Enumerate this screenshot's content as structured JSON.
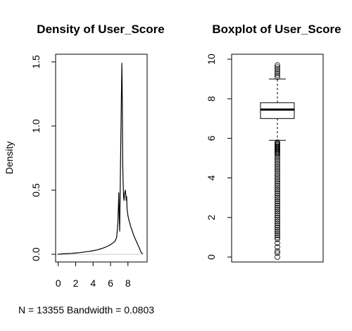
{
  "chart_data": [
    {
      "type": "line",
      "title": "Density of User_Score",
      "ylabel": "Density",
      "xlabel": "N = 13355   Bandwidth = 0.0803",
      "xlim": [
        -0.3,
        10.2
      ],
      "ylim": [
        -0.06,
        1.56
      ],
      "x_ticks": [
        0,
        2,
        4,
        6,
        8
      ],
      "y_ticks": [
        0.0,
        0.5,
        1.0,
        1.5
      ],
      "x_tick_labels": [
        "0",
        "2",
        "4",
        "6",
        "8"
      ],
      "y_tick_labels": [
        "0.0",
        "0.5",
        "1.0",
        "1.5"
      ],
      "zero_line": true,
      "series": [
        {
          "x": [
            -0.1,
            0.5,
            1.0,
            1.5,
            2.0,
            2.5,
            3.0,
            3.5,
            4.0,
            4.5,
            5.0,
            5.5,
            6.0,
            6.3,
            6.5,
            6.7,
            6.85,
            6.95,
            7.0,
            7.05,
            7.1,
            7.2,
            7.3,
            7.35,
            7.4,
            7.45,
            7.5,
            7.55,
            7.6,
            7.7,
            7.8,
            7.85,
            7.9,
            8.0,
            8.1,
            8.3,
            8.5,
            8.7,
            8.9,
            9.1,
            9.3,
            9.5,
            9.7
          ],
          "y": [
            0.0,
            0.003,
            0.005,
            0.007,
            0.01,
            0.013,
            0.018,
            0.022,
            0.028,
            0.035,
            0.045,
            0.058,
            0.075,
            0.09,
            0.1,
            0.13,
            0.25,
            0.48,
            0.3,
            0.18,
            0.45,
            1.0,
            1.49,
            1.2,
            0.7,
            0.55,
            0.45,
            0.42,
            0.47,
            0.5,
            0.42,
            0.45,
            0.35,
            0.3,
            0.27,
            0.22,
            0.18,
            0.14,
            0.11,
            0.08,
            0.05,
            0.015,
            0.002
          ]
        }
      ]
    },
    {
      "type": "boxplot",
      "title": "Boxplot of User_Score",
      "ylim": [
        -0.25,
        10.25
      ],
      "y_ticks": [
        0,
        2,
        4,
        6,
        8,
        10
      ],
      "y_tick_labels": [
        "0",
        "2",
        "4",
        "6",
        "8",
        "10"
      ],
      "box": {
        "min": 5.9,
        "q1": 7.0,
        "median": 7.45,
        "q3": 7.8,
        "max": 9.0
      },
      "outliers_high": [
        9.1,
        9.2,
        9.3,
        9.4,
        9.5,
        9.6,
        9.7
      ],
      "outliers_low": [
        5.8,
        5.75,
        5.7,
        5.65,
        5.6,
        5.55,
        5.5,
        5.45,
        5.4,
        5.35,
        5.3,
        5.25,
        5.2,
        5.1,
        5.0,
        4.9,
        4.8,
        4.7,
        4.6,
        4.5,
        4.4,
        4.3,
        4.2,
        4.1,
        4.0,
        3.9,
        3.8,
        3.7,
        3.6,
        3.5,
        3.4,
        3.3,
        3.2,
        3.1,
        3.0,
        2.9,
        2.8,
        2.7,
        2.6,
        2.5,
        2.4,
        2.3,
        2.2,
        2.1,
        2.0,
        1.9,
        1.8,
        1.7,
        1.6,
        1.5,
        1.4,
        1.3,
        1.2,
        1.1,
        1.0,
        0.9,
        0.7,
        0.5,
        0.3,
        0.2,
        0.0
      ]
    }
  ]
}
